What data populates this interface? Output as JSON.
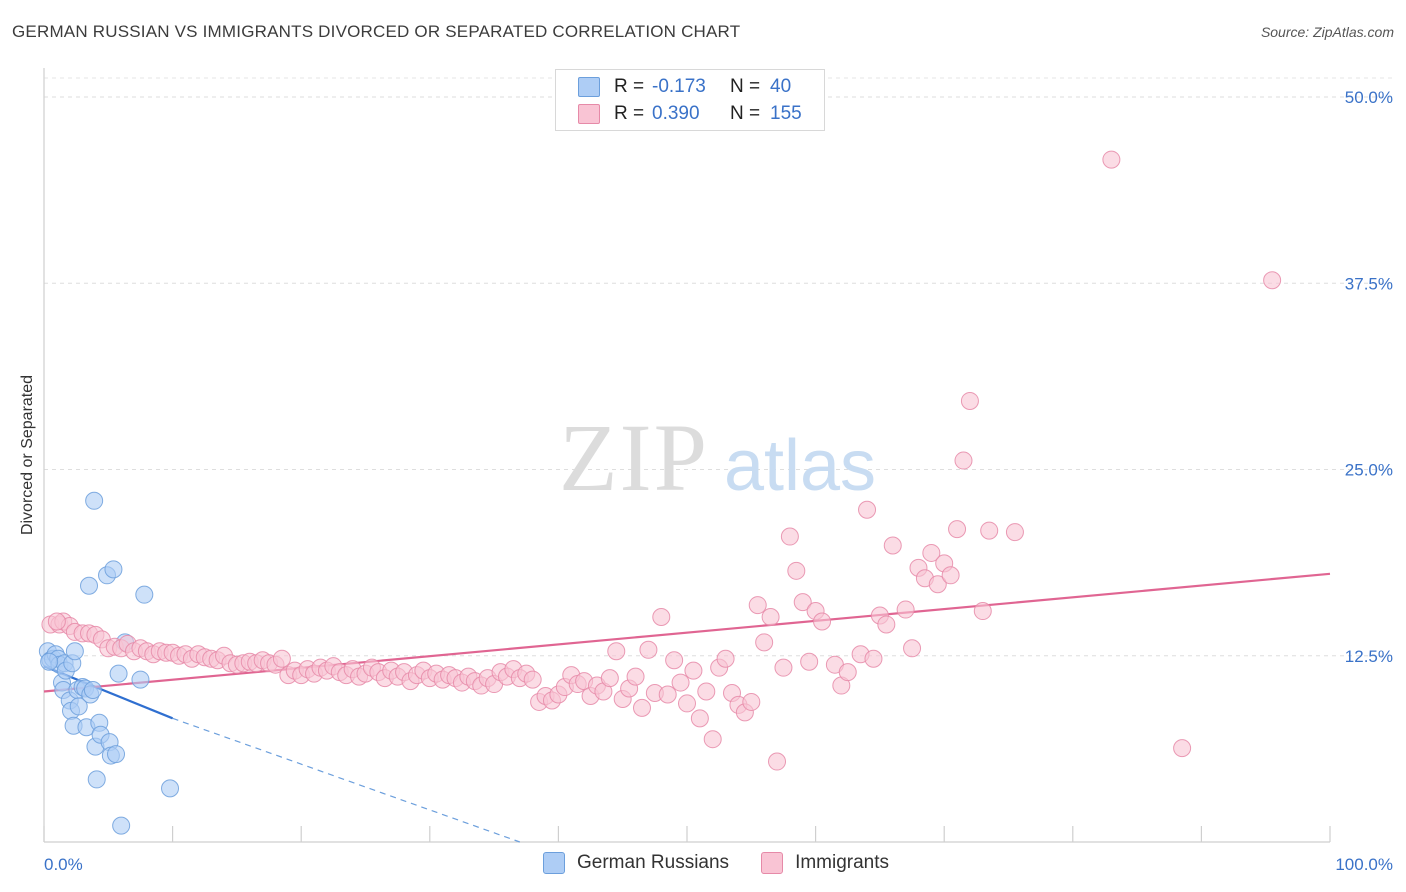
{
  "header": {
    "title": "GERMAN RUSSIAN VS IMMIGRANTS DIVORCED OR SEPARATED CORRELATION CHART",
    "source": "Source: ZipAtlas.com"
  },
  "watermark": {
    "zip": "ZIP",
    "atlas": "atlas"
  },
  "legend": {
    "rows": [
      {
        "r_label": "R =",
        "r_value": "-0.173",
        "n_label": "N =",
        "n_value": "40",
        "color": "#aecdf5",
        "border": "#6c9fdc"
      },
      {
        "r_label": "R =",
        "r_value": "0.390",
        "n_label": "N =",
        "n_value": "155",
        "color": "#f9c4d4",
        "border": "#e68aa8"
      }
    ]
  },
  "bottom_legend": [
    {
      "label": "German Russians",
      "color": "#aecdf5",
      "border": "#6c9fdc"
    },
    {
      "label": "Immigrants",
      "color": "#f9c4d4",
      "border": "#e68aa8"
    }
  ],
  "chart_data": {
    "type": "scatter",
    "title": "GERMAN RUSSIAN VS IMMIGRANTS DIVORCED OR SEPARATED CORRELATION CHART",
    "xlabel": "",
    "ylabel": "Divorced or Separated",
    "xlim": [
      0,
      100
    ],
    "ylim": [
      0,
      50
    ],
    "x_tick_labels": [
      "0.0%",
      "100.0%"
    ],
    "y_ticks": [
      12.5,
      25.0,
      37.5,
      50.0
    ],
    "y_tick_labels": [
      "12.5%",
      "25.0%",
      "37.5%",
      "50.0%"
    ],
    "grid": true,
    "legend_position": "top-center",
    "series": [
      {
        "name": "German Russians",
        "color": "#6c9fdc",
        "fill": "#aecdf5",
        "trend": {
          "x0": 0,
          "y0": 11.8,
          "x1": 10,
          "y1": 8.3,
          "dashed_to": [
            37,
            0
          ]
        },
        "points": [
          [
            0.3,
            12.8
          ],
          [
            0.5,
            12.2
          ],
          [
            0.7,
            12.3
          ],
          [
            0.9,
            12.6
          ],
          [
            1.1,
            12.3
          ],
          [
            1.2,
            11.9
          ],
          [
            1.4,
            10.7
          ],
          [
            1.5,
            10.2
          ],
          [
            1.6,
            12.0
          ],
          [
            1.7,
            11.5
          ],
          [
            2.0,
            9.5
          ],
          [
            2.1,
            8.8
          ],
          [
            2.2,
            12.0
          ],
          [
            2.3,
            7.8
          ],
          [
            2.4,
            12.8
          ],
          [
            2.6,
            10.2
          ],
          [
            2.7,
            9.1
          ],
          [
            3.0,
            10.4
          ],
          [
            3.2,
            10.3
          ],
          [
            3.3,
            7.7
          ],
          [
            3.5,
            17.2
          ],
          [
            3.6,
            9.9
          ],
          [
            3.8,
            10.2
          ],
          [
            3.9,
            22.9
          ],
          [
            4.0,
            6.4
          ],
          [
            4.1,
            4.2
          ],
          [
            4.3,
            8.0
          ],
          [
            4.4,
            7.2
          ],
          [
            4.9,
            17.9
          ],
          [
            5.1,
            6.7
          ],
          [
            5.2,
            5.8
          ],
          [
            5.4,
            18.3
          ],
          [
            5.6,
            5.9
          ],
          [
            5.8,
            11.3
          ],
          [
            6.0,
            1.1
          ],
          [
            6.3,
            13.4
          ],
          [
            7.5,
            10.9
          ],
          [
            7.8,
            16.6
          ],
          [
            9.8,
            3.6
          ],
          [
            0.4,
            12.1
          ]
        ]
      },
      {
        "name": "Immigrants",
        "color": "#e68aa8",
        "fill": "#f9c4d4",
        "trend": {
          "x0": 0,
          "y0": 10.1,
          "x1": 100,
          "y1": 18.0
        },
        "points": [
          [
            0.5,
            14.6
          ],
          [
            1.2,
            14.6
          ],
          [
            1.5,
            14.8
          ],
          [
            2.0,
            14.5
          ],
          [
            2.4,
            14.1
          ],
          [
            3.0,
            14.0
          ],
          [
            3.5,
            14.0
          ],
          [
            4.0,
            13.9
          ],
          [
            4.5,
            13.6
          ],
          [
            5.0,
            13.0
          ],
          [
            5.5,
            13.1
          ],
          [
            6.0,
            13.0
          ],
          [
            6.5,
            13.3
          ],
          [
            7.0,
            12.8
          ],
          [
            7.5,
            13.0
          ],
          [
            8.0,
            12.8
          ],
          [
            8.5,
            12.6
          ],
          [
            9.0,
            12.8
          ],
          [
            9.5,
            12.7
          ],
          [
            10.0,
            12.7
          ],
          [
            10.5,
            12.5
          ],
          [
            11.0,
            12.6
          ],
          [
            11.5,
            12.3
          ],
          [
            12.0,
            12.6
          ],
          [
            12.5,
            12.4
          ],
          [
            13.0,
            12.3
          ],
          [
            13.5,
            12.2
          ],
          [
            14.0,
            12.5
          ],
          [
            14.5,
            12.0
          ],
          [
            15.0,
            11.9
          ],
          [
            15.5,
            12.0
          ],
          [
            16.0,
            12.1
          ],
          [
            16.5,
            12.0
          ],
          [
            17.0,
            12.2
          ],
          [
            17.5,
            12.0
          ],
          [
            18.0,
            11.9
          ],
          [
            18.5,
            12.3
          ],
          [
            19.0,
            11.2
          ],
          [
            19.5,
            11.5
          ],
          [
            20.0,
            11.2
          ],
          [
            20.5,
            11.6
          ],
          [
            21.0,
            11.3
          ],
          [
            21.5,
            11.7
          ],
          [
            22.0,
            11.5
          ],
          [
            22.5,
            11.8
          ],
          [
            23.0,
            11.4
          ],
          [
            23.5,
            11.2
          ],
          [
            24.0,
            11.6
          ],
          [
            24.5,
            11.1
          ],
          [
            25.0,
            11.3
          ],
          [
            25.5,
            11.7
          ],
          [
            26.0,
            11.4
          ],
          [
            26.5,
            11.0
          ],
          [
            27.0,
            11.5
          ],
          [
            27.5,
            11.1
          ],
          [
            28.0,
            11.4
          ],
          [
            28.5,
            10.8
          ],
          [
            29.0,
            11.2
          ],
          [
            29.5,
            11.5
          ],
          [
            30.0,
            11.0
          ],
          [
            30.5,
            11.3
          ],
          [
            31.0,
            10.9
          ],
          [
            31.5,
            11.2
          ],
          [
            32.0,
            11.0
          ],
          [
            32.5,
            10.7
          ],
          [
            33.0,
            11.1
          ],
          [
            33.5,
            10.8
          ],
          [
            34.0,
            10.5
          ],
          [
            34.5,
            11.0
          ],
          [
            35.0,
            10.6
          ],
          [
            35.5,
            11.4
          ],
          [
            36.0,
            11.1
          ],
          [
            36.5,
            11.6
          ],
          [
            37.0,
            11.0
          ],
          [
            37.5,
            11.3
          ],
          [
            38.0,
            10.9
          ],
          [
            38.5,
            9.4
          ],
          [
            39.0,
            9.8
          ],
          [
            39.5,
            9.5
          ],
          [
            40.0,
            9.9
          ],
          [
            40.5,
            10.4
          ],
          [
            41.0,
            11.2
          ],
          [
            41.5,
            10.6
          ],
          [
            42.0,
            10.8
          ],
          [
            42.5,
            9.8
          ],
          [
            43.0,
            10.5
          ],
          [
            43.5,
            10.1
          ],
          [
            44.0,
            11.0
          ],
          [
            44.5,
            12.8
          ],
          [
            45.0,
            9.6
          ],
          [
            45.5,
            10.3
          ],
          [
            46.0,
            11.1
          ],
          [
            46.5,
            9.0
          ],
          [
            47.0,
            12.9
          ],
          [
            47.5,
            10.0
          ],
          [
            48.0,
            15.1
          ],
          [
            48.5,
            9.9
          ],
          [
            49.0,
            12.2
          ],
          [
            49.5,
            10.7
          ],
          [
            50.0,
            9.3
          ],
          [
            50.5,
            11.5
          ],
          [
            51.0,
            8.3
          ],
          [
            51.5,
            10.1
          ],
          [
            52.0,
            6.9
          ],
          [
            52.5,
            11.7
          ],
          [
            53.0,
            12.3
          ],
          [
            53.5,
            10.0
          ],
          [
            54.0,
            9.2
          ],
          [
            54.5,
            8.7
          ],
          [
            55.0,
            9.4
          ],
          [
            55.5,
            15.9
          ],
          [
            56.0,
            13.4
          ],
          [
            56.5,
            15.1
          ],
          [
            57.0,
            5.4
          ],
          [
            57.5,
            11.7
          ],
          [
            58.0,
            20.5
          ],
          [
            58.5,
            18.2
          ],
          [
            59.0,
            16.1
          ],
          [
            59.5,
            12.1
          ],
          [
            60.0,
            15.5
          ],
          [
            60.5,
            14.8
          ],
          [
            61.5,
            11.9
          ],
          [
            62.0,
            10.5
          ],
          [
            62.5,
            11.4
          ],
          [
            63.5,
            12.6
          ],
          [
            64.0,
            22.3
          ],
          [
            65.0,
            15.2
          ],
          [
            65.5,
            14.6
          ],
          [
            66.0,
            19.9
          ],
          [
            67.0,
            15.6
          ],
          [
            67.5,
            13.0
          ],
          [
            68.0,
            18.4
          ],
          [
            68.5,
            17.7
          ],
          [
            69.0,
            19.4
          ],
          [
            69.5,
            17.3
          ],
          [
            70.0,
            18.7
          ],
          [
            70.5,
            17.9
          ],
          [
            71.0,
            21.0
          ],
          [
            71.5,
            25.6
          ],
          [
            72.0,
            29.6
          ],
          [
            73.0,
            15.5
          ],
          [
            73.5,
            20.9
          ],
          [
            75.5,
            20.8
          ],
          [
            83.0,
            45.8
          ],
          [
            88.5,
            6.3
          ],
          [
            95.5,
            37.7
          ],
          [
            64.5,
            12.3
          ],
          [
            1.0,
            14.8
          ]
        ]
      }
    ]
  }
}
